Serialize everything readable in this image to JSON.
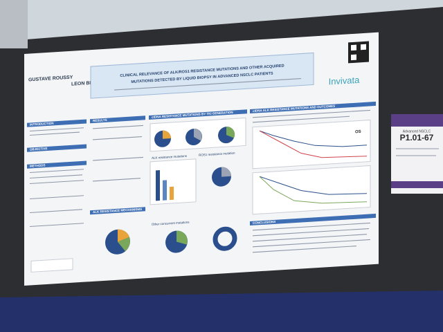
{
  "poster": {
    "logos": [
      "GUSTAVE ROUSSY",
      "LEON BERARD"
    ],
    "title": [
      "CLINICAL RELEVANCE OF ALK/ROS1 RESISTANCE MUTATIONS AND OTHER ACQUIRED",
      "MUTATIONS DETECTED BY LIQUID BIOPSY IN ADVANCED NSCLC PATIENTS"
    ],
    "brand": "Invivata",
    "sections": [
      "INTRODUCTION",
      "METHODS",
      "OBJECTIVE",
      "RESULTS",
      "ALK RESISTANCE MECHANISMS",
      "ctDNA RESISTANCE MUTATIONS BY TKI GENERATION",
      "ctDNA ALK RESISTANCE MUTATIONS AND OUTCOMES",
      "CONCLUSIONS"
    ],
    "panels": [
      "ALK resistance mutations",
      "ROS1 resistance mutation",
      "Other concurrent mutations"
    ],
    "plot_label": "OS"
  },
  "side_card": {
    "code": "P1.01-67",
    "subtitle": "Advanced NSCLC"
  }
}
